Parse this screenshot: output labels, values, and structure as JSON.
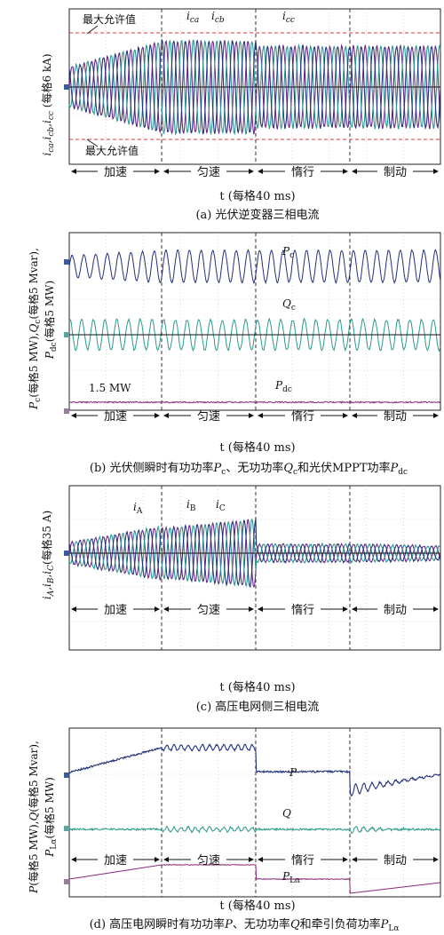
{
  "figure": {
    "phases": [
      "加速",
      "匀速",
      "惰行",
      "制动"
    ],
    "xaxis_label": "t (每格40 ms)"
  },
  "chart_data": [
    {
      "id": "a",
      "type": "line",
      "caption": "(a) 光伏逆变器三相电流",
      "ylabel": "i_ca,i_cb,i_cc (每格6 kA)",
      "xlabel": "t (每格40 ms)",
      "annotations": {
        "upper_limit": "最大允许值",
        "lower_limit": "最大允许值"
      },
      "series": [
        {
          "name": "i_ca",
          "color": "#6a2a8c"
        },
        {
          "name": "i_cb",
          "color": "#2a9a8e"
        },
        {
          "name": "i_cc",
          "color": "#22317a"
        }
      ],
      "phase_boundaries_divisions": [
        0,
        2.0,
        4.0,
        6.0,
        8.0
      ],
      "grid": true
    },
    {
      "id": "b",
      "type": "line",
      "caption": "(b) 光伏侧瞬时有功功率P_c、无功功率Q_c和光伏MPPT功率P_dc",
      "ylabel": "P_c(每格5 MW),Q_c(每格5 Mvar), P_dc(每格5 MW)",
      "xlabel": "t (每格40 ms)",
      "annotations": {
        "pdc_value": "1.5 MW"
      },
      "series": [
        {
          "name": "P_c",
          "color": "#22317a"
        },
        {
          "name": "Q_c",
          "color": "#2a9a8e"
        },
        {
          "name": "P_dc",
          "color": "#8a2a7a",
          "value_MW": 1.5
        }
      ],
      "grid": true
    },
    {
      "id": "c",
      "type": "line",
      "caption": "(c) 高压电网侧三相电流",
      "ylabel": "i_A,i_B,i_C (每格35 A)",
      "xlabel": "t (每格40 ms)",
      "series": [
        {
          "name": "i_A",
          "color": "#6a2a8c"
        },
        {
          "name": "i_B",
          "color": "#2a9a8e"
        },
        {
          "name": "i_C",
          "color": "#22317a"
        }
      ],
      "grid": true
    },
    {
      "id": "d",
      "type": "line",
      "caption": "(d) 高压电网瞬时有功功率P、无功功率Q和牵引负荷功率P_Lα",
      "ylabel": "P(每格5 MW),Q(每格5 Mvar), P_Lα(每格5 MW)",
      "xlabel": "t (每格40 ms)",
      "series": [
        {
          "name": "P",
          "color": "#22317a"
        },
        {
          "name": "Q",
          "color": "#2a9a8e"
        },
        {
          "name": "P_Lα",
          "color": "#8a2a7a"
        }
      ],
      "grid": true
    }
  ]
}
